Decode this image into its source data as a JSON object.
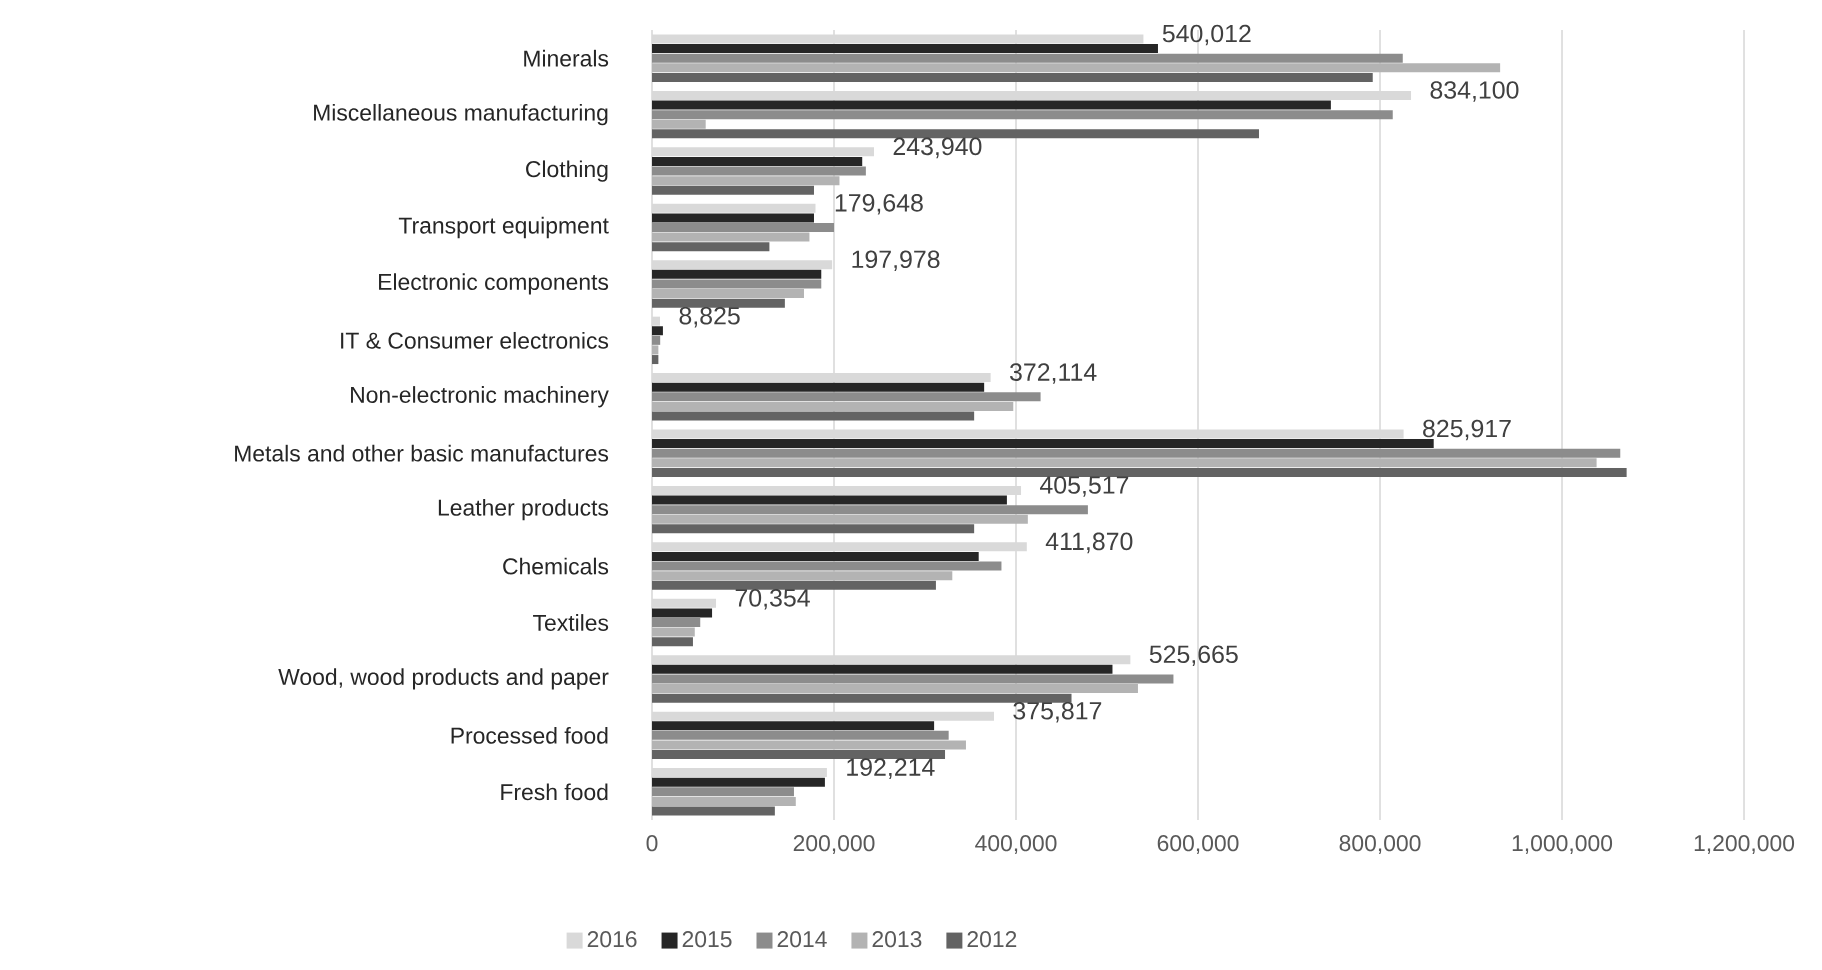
{
  "chart_data": {
    "type": "bar",
    "orientation": "horizontal",
    "categories": [
      "Minerals",
      "Miscellaneous manufacturing",
      "Clothing",
      "Transport equipment",
      "Electronic components",
      "IT & Consumer electronics",
      "Non-electronic machinery",
      "Metals and other basic manufactures",
      "Leather products",
      "Chemicals",
      "Textiles",
      "Wood, wood products and paper",
      "Processed food",
      "Fresh food"
    ],
    "series": [
      {
        "name": "2016",
        "color": "#d9d9d9",
        "values": [
          540012,
          834100,
          243940,
          179648,
          197978,
          8825,
          372114,
          825917,
          405517,
          411870,
          70354,
          525665,
          375817,
          192214
        ],
        "value_labels": [
          "540,012",
          "834,100",
          "243,940",
          "179,648",
          "197,978",
          "8,825",
          "372,114",
          "825,917",
          "405,517",
          "411,870",
          "70,354",
          "525,665",
          "375,817",
          "192,214"
        ]
      },
      {
        "name": "2015",
        "color": "#262626",
        "values": [
          556000,
          746000,
          231000,
          178000,
          186000,
          12000,
          365000,
          859000,
          390000,
          359000,
          66000,
          506000,
          310000,
          190000
        ]
      },
      {
        "name": "2014",
        "color": "#8c8c8c",
        "values": [
          825000,
          814000,
          235000,
          200000,
          186000,
          9000,
          427000,
          1064000,
          479000,
          384000,
          53000,
          573000,
          326000,
          156000
        ]
      },
      {
        "name": "2013",
        "color": "#b3b3b3",
        "values": [
          932000,
          59000,
          206000,
          173000,
          167000,
          7000,
          397000,
          1038000,
          413000,
          330000,
          47000,
          534000,
          345000,
          158000
        ]
      },
      {
        "name": "2012",
        "color": "#636363",
        "values": [
          792000,
          667000,
          178000,
          129000,
          146000,
          7000,
          354000,
          1071000,
          354000,
          312000,
          45000,
          461000,
          322000,
          135000
        ]
      }
    ],
    "xlim": [
      0,
      1200000
    ],
    "xticks": [
      0,
      {
        "value": 200000,
        "label": "200,000"
      },
      {
        "value": 400000,
        "label": "400,000"
      },
      {
        "value": 600000,
        "label": "600,000"
      },
      {
        "value": 800000,
        "label": "800,000"
      },
      {
        "value": 1000000,
        "label": "1,000,000"
      },
      {
        "value": 1200000,
        "label": "1,200,000"
      }
    ],
    "grid": "x",
    "legend": "bottom"
  }
}
